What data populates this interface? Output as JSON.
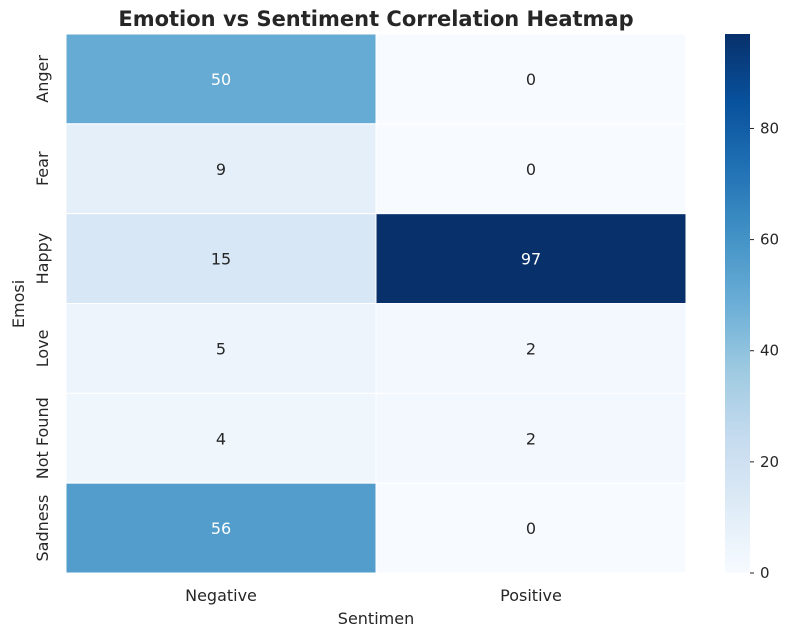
{
  "chart_data": {
    "type": "heatmap",
    "title": "Emotion vs Sentiment Correlation Heatmap",
    "xlabel": "Sentimen",
    "ylabel": "Emosi",
    "x_categories": [
      "Negative",
      "Positive"
    ],
    "y_categories": [
      "Anger",
      "Fear",
      "Happy",
      "Love",
      "Not Found",
      "Sadness"
    ],
    "values": [
      [
        50,
        0
      ],
      [
        9,
        0
      ],
      [
        15,
        97
      ],
      [
        5,
        2
      ],
      [
        4,
        2
      ],
      [
        56,
        0
      ]
    ],
    "colormap": "Blues",
    "color_range": [
      0,
      97
    ],
    "colorbar_ticks": [
      0,
      20,
      40,
      60,
      80
    ],
    "grid": false
  }
}
